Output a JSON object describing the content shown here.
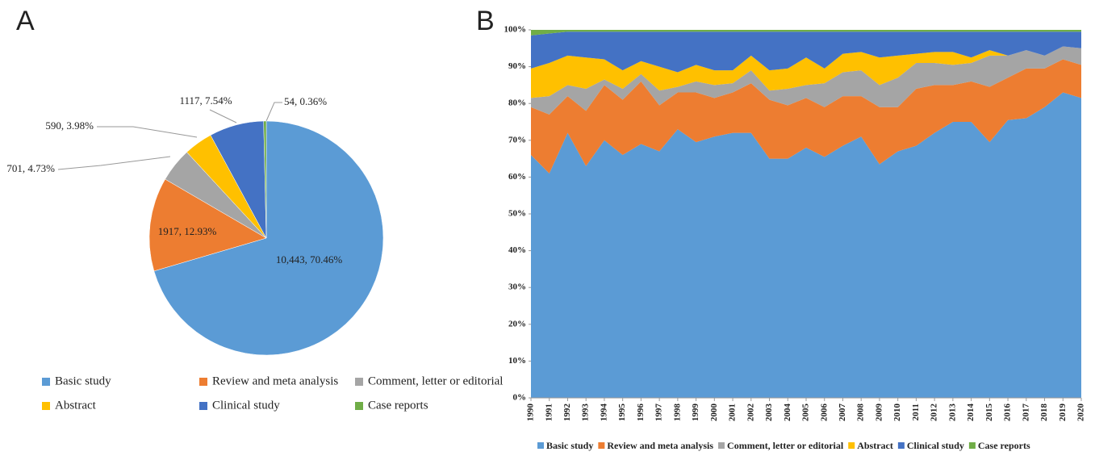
{
  "chart_data": [
    {
      "type": "pie",
      "panel_label": "A",
      "categories": [
        "Basic study",
        "Review and meta analysis",
        "Comment, letter or editorial",
        "Abstract",
        "Clinical study",
        "Case reports"
      ],
      "values": [
        10443,
        1917,
        701,
        590,
        1117,
        54
      ],
      "value_labels": [
        "10,443, 70.46%",
        "1917, 12.93%",
        "701, 4.73%",
        "590, 3.98%",
        "1117, 7.54%",
        "54, 0.36%"
      ],
      "colors": [
        "#5b9bd5",
        "#ed7d31",
        "#a5a5a5",
        "#ffc000",
        "#4472c4",
        "#70ad47"
      ]
    },
    {
      "type": "stacked_area",
      "panel_label": "B",
      "x": [
        1990,
        1991,
        1992,
        1993,
        1994,
        1995,
        1996,
        1997,
        1998,
        1999,
        2000,
        2001,
        2002,
        2003,
        2004,
        2005,
        2006,
        2007,
        2008,
        2009,
        2010,
        2011,
        2012,
        2013,
        2014,
        2015,
        2016,
        2017,
        2018,
        2019,
        2020
      ],
      "series": [
        {
          "name": "Basic study",
          "color": "#5b9bd5",
          "values": [
            66,
            61,
            72,
            63,
            70,
            66,
            69,
            67,
            73,
            69.5,
            71,
            72,
            72,
            65,
            65,
            68,
            65.5,
            68.5,
            71,
            63.5,
            67,
            68.5,
            72,
            75,
            75,
            69.5,
            75.5,
            76,
            79,
            83,
            81.5
          ]
        },
        {
          "name": "Review and meta analysis",
          "color": "#ed7d31",
          "values": [
            13,
            16,
            10,
            15,
            15,
            15,
            17,
            12.5,
            10,
            13.5,
            10.5,
            11,
            13.5,
            16,
            14.5,
            13.5,
            13.5,
            13.5,
            11,
            15.5,
            12,
            15.5,
            13,
            10,
            11,
            15,
            11.5,
            13.5,
            10.5,
            9,
            9
          ]
        },
        {
          "name": "Comment, letter or editorial",
          "color": "#a5a5a5",
          "values": [
            2.5,
            5,
            3,
            6,
            1.5,
            3,
            2,
            4,
            1.5,
            3,
            3.5,
            2.5,
            3.5,
            2.5,
            4.5,
            3.5,
            6.5,
            6.5,
            7,
            6,
            8,
            7,
            6,
            5.5,
            5,
            8.5,
            6,
            5,
            3.5,
            3.5,
            4.5
          ]
        },
        {
          "name": "Abstract",
          "color": "#ffc000",
          "values": [
            8,
            9,
            8,
            8.5,
            5.5,
            5,
            3.5,
            6.5,
            4,
            4.5,
            4,
            3.5,
            4,
            5.5,
            5.5,
            7.5,
            4,
            5,
            5,
            7.5,
            6,
            2.5,
            3,
            3.5,
            1.5,
            1.5,
            0,
            0,
            0,
            0,
            0
          ]
        },
        {
          "name": "Clinical study",
          "color": "#4472c4",
          "values": [
            9,
            8,
            6.5,
            7,
            7.5,
            10.5,
            8,
            9.5,
            11,
            9,
            10.5,
            10.5,
            6.5,
            10.5,
            10,
            7,
            10,
            6,
            5.5,
            7,
            6.5,
            6,
            5.5,
            5.5,
            7,
            5,
            6.5,
            5,
            6.5,
            4,
            4.5
          ]
        },
        {
          "name": "Case reports",
          "color": "#70ad47",
          "values": [
            1.5,
            1,
            0.5,
            0.5,
            0.5,
            0.5,
            0.5,
            0.5,
            0.5,
            0.5,
            0.5,
            0.5,
            0.5,
            0.5,
            0.5,
            0.5,
            0.5,
            0.5,
            0.5,
            0.5,
            0.5,
            0.5,
            0.5,
            0.5,
            0.5,
            0.5,
            0.5,
            0.5,
            0.5,
            0.5,
            0.5
          ]
        }
      ],
      "ylim": [
        0,
        100
      ],
      "yticks": [
        {
          "value": 0,
          "label": "0%"
        },
        {
          "value": 10,
          "label": "10%"
        },
        {
          "value": 20,
          "label": "20%"
        },
        {
          "value": 30,
          "label": "30%"
        },
        {
          "value": 40,
          "label": "40%"
        },
        {
          "value": 50,
          "label": "50%"
        },
        {
          "value": 60,
          "label": "60%"
        },
        {
          "value": 70,
          "label": "70%"
        },
        {
          "value": 80,
          "label": "80%"
        },
        {
          "value": 90,
          "label": "90%"
        },
        {
          "value": 100,
          "label": "100%"
        }
      ],
      "legend": "bottom"
    }
  ]
}
